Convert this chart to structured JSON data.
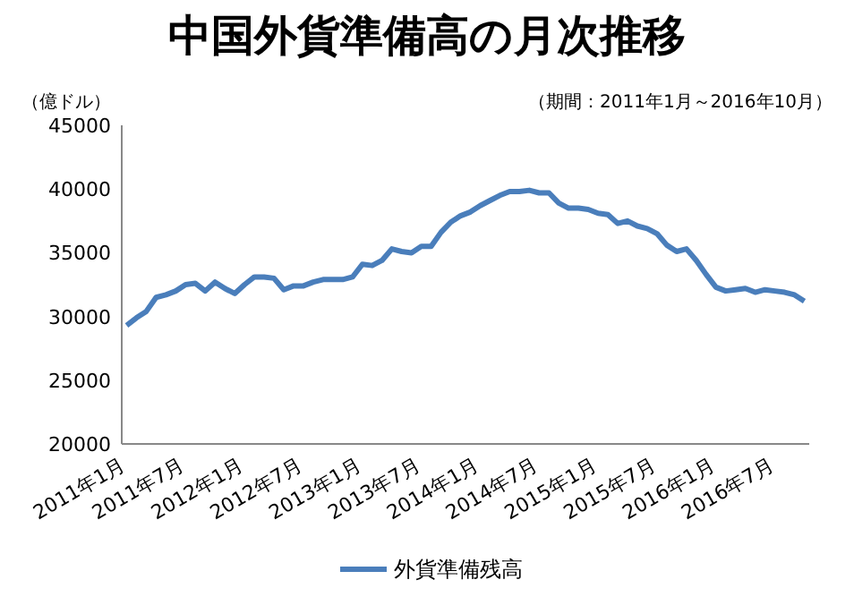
{
  "chart_data": {
    "type": "line",
    "title": "中国外貨準備高の月次推移",
    "ylabel": "（億ドル）",
    "annotations": [
      "（期間：2011年1月～2016年10月）"
    ],
    "categories": [
      "2011年1月",
      null,
      null,
      null,
      null,
      null,
      "2011年7月",
      null,
      null,
      null,
      null,
      null,
      "2012年1月",
      null,
      null,
      null,
      null,
      null,
      "2012年7月",
      null,
      null,
      null,
      null,
      null,
      "2013年1月",
      null,
      null,
      null,
      null,
      null,
      "2013年7月",
      null,
      null,
      null,
      null,
      null,
      "2014年1月",
      null,
      null,
      null,
      null,
      null,
      "2014年7月",
      null,
      null,
      null,
      null,
      null,
      "2015年1月",
      null,
      null,
      null,
      null,
      null,
      "2015年7月",
      null,
      null,
      null,
      null,
      null,
      "2016年1月",
      null,
      null,
      null,
      null,
      null,
      "2016年7月",
      null,
      null,
      null
    ],
    "series": [
      {
        "name": "外貨準備残高",
        "color": "#4a7ebb",
        "values": [
          29300,
          29900,
          30400,
          31500,
          31700,
          32000,
          32500,
          32600,
          32000,
          32700,
          32200,
          31800,
          32500,
          33100,
          33100,
          33000,
          32100,
          32400,
          32400,
          32700,
          32900,
          32900,
          32900,
          33100,
          34100,
          34000,
          34400,
          35300,
          35100,
          35000,
          35500,
          35500,
          36600,
          37400,
          37900,
          38200,
          38700,
          39100,
          39500,
          39800,
          39800,
          39900,
          39700,
          39700,
          38900,
          38500,
          38500,
          38400,
          38100,
          38000,
          37300,
          37500,
          37100,
          36900,
          36500,
          35600,
          35100,
          35300,
          34400,
          33300,
          32300,
          32000,
          32100,
          32200,
          31900,
          32100,
          32000,
          31900,
          31700,
          31200
        ]
      }
    ],
    "ylim": [
      20000,
      45000
    ],
    "yticks": [
      20000,
      25000,
      30000,
      35000,
      40000,
      45000
    ],
    "grid": false,
    "legend": "bottom",
    "marker": "none",
    "line_style": "solid"
  }
}
